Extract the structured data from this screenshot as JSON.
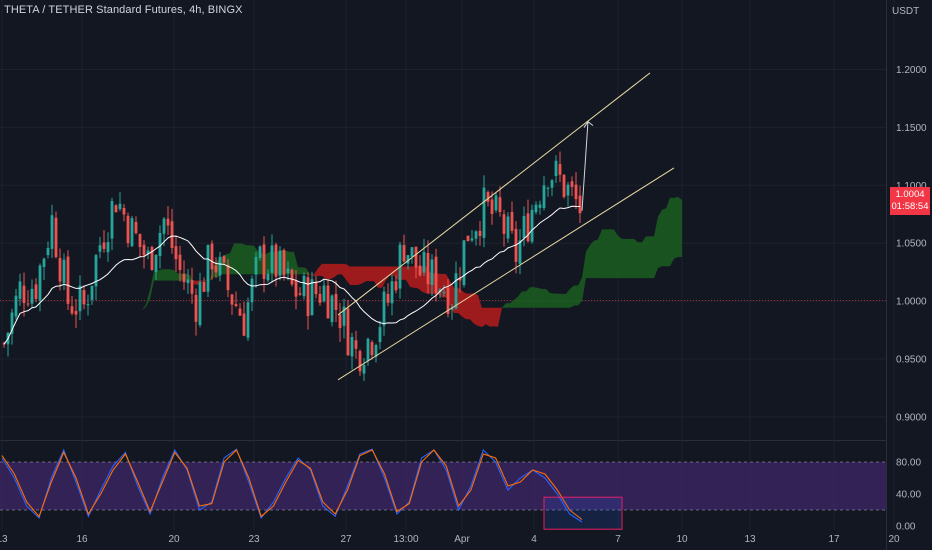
{
  "header": {
    "symbol_title": "THETA / TETHER Standard Futures, 4h, BINGX"
  },
  "price_axis": {
    "currency": "USDT",
    "last_price": "1.0004",
    "countdown": "01:58:54"
  },
  "colors": {
    "background": "#131722",
    "bull": "#26a69a",
    "bear": "#ef5350",
    "cloud_bear": "#b71c1c",
    "cloud_bull": "#1b5e20",
    "channel": "#e6d9a2",
    "ma": "#ffffff",
    "stoch_k": "#2962ff",
    "stoch_d": "#ff6d00",
    "stoch_band": "#4a2a7a",
    "highlight": "#e91e63"
  },
  "chart_data": [
    {
      "type": "candlestick",
      "title": "THETA / TETHER Standard Futures, 4h, BINGX",
      "ylim": [
        0.88,
        1.26
      ],
      "y_ticks": [
        "1.2000",
        "1.1500",
        "1.1000",
        "1.0500",
        "1.0000",
        "0.9500",
        "0.9000"
      ],
      "y_tick_values": [
        1.2,
        1.15,
        1.1,
        1.05,
        1.0,
        0.95,
        0.9
      ],
      "x_ticks": [
        "13",
        "16",
        "20",
        "23",
        "27",
        "13:00",
        "Apr",
        "4",
        "7",
        "10",
        "13",
        "17",
        "20"
      ],
      "x_tick_bars": [
        0,
        20,
        43,
        63,
        86,
        101,
        115,
        133,
        154,
        170,
        187,
        208,
        223
      ],
      "last_price": 1.0004,
      "close_path": [
        {
          "bar": 0,
          "close": 0.963
        },
        {
          "bar": 4,
          "close": 1.01
        },
        {
          "bar": 8,
          "close": 1.015
        },
        {
          "bar": 12,
          "close": 1.07
        },
        {
          "bar": 16,
          "close": 1.0
        },
        {
          "bar": 20,
          "close": 0.995
        },
        {
          "bar": 24,
          "close": 1.05
        },
        {
          "bar": 28,
          "close": 1.09
        },
        {
          "bar": 32,
          "close": 1.06
        },
        {
          "bar": 36,
          "close": 1.035
        },
        {
          "bar": 40,
          "close": 1.07
        },
        {
          "bar": 44,
          "close": 1.025
        },
        {
          "bar": 48,
          "close": 1.0
        },
        {
          "bar": 52,
          "close": 1.04
        },
        {
          "bar": 56,
          "close": 1.01
        },
        {
          "bar": 60,
          "close": 0.985
        },
        {
          "bar": 64,
          "close": 1.035
        },
        {
          "bar": 68,
          "close": 1.03
        },
        {
          "bar": 72,
          "close": 1.01
        },
        {
          "bar": 76,
          "close": 1.005
        },
        {
          "bar": 80,
          "close": 1.01
        },
        {
          "bar": 84,
          "close": 0.99
        },
        {
          "bar": 88,
          "close": 0.955
        },
        {
          "bar": 92,
          "close": 0.97
        },
        {
          "bar": 96,
          "close": 1.0
        },
        {
          "bar": 100,
          "close": 1.05
        },
        {
          "bar": 104,
          "close": 1.025
        },
        {
          "bar": 108,
          "close": 1.02
        },
        {
          "bar": 112,
          "close": 1.005
        },
        {
          "bar": 116,
          "close": 1.06
        },
        {
          "bar": 120,
          "close": 1.08
        },
        {
          "bar": 124,
          "close": 1.07
        },
        {
          "bar": 128,
          "close": 1.04
        },
        {
          "bar": 132,
          "close": 1.08
        },
        {
          "bar": 136,
          "close": 1.115
        },
        {
          "bar": 140,
          "close": 1.1
        },
        {
          "bar": 144,
          "close": 1.08
        }
      ]
    },
    {
      "type": "line",
      "ylim": [
        -5,
        100
      ],
      "y_ticks": [
        "80.00",
        "40.00",
        "0.00"
      ],
      "y_tick_values": [
        80,
        40,
        0
      ],
      "band": [
        20,
        80
      ],
      "series": [
        {
          "values": [
            85,
            60,
            25,
            10,
            60,
            95,
            55,
            12,
            45,
            75,
            92,
            50,
            15,
            60,
            95,
            70,
            20,
            30,
            85,
            96,
            55,
            10,
            30,
            60,
            85,
            70,
            25,
            12,
            50,
            90,
            96,
            60,
            15,
            30,
            85,
            95,
            70,
            20,
            50,
            95,
            80,
            45,
            60,
            70,
            60,
            40,
            15,
            5
          ]
        },
        {
          "values": [
            88,
            65,
            30,
            12,
            55,
            92,
            60,
            15,
            40,
            70,
            90,
            55,
            18,
            55,
            92,
            72,
            25,
            28,
            80,
            95,
            60,
            12,
            25,
            55,
            82,
            72,
            30,
            15,
            45,
            88,
            95,
            65,
            18,
            28,
            80,
            95,
            75,
            25,
            45,
            90,
            85,
            50,
            55,
            70,
            65,
            45,
            20,
            8
          ]
        }
      ]
    }
  ]
}
